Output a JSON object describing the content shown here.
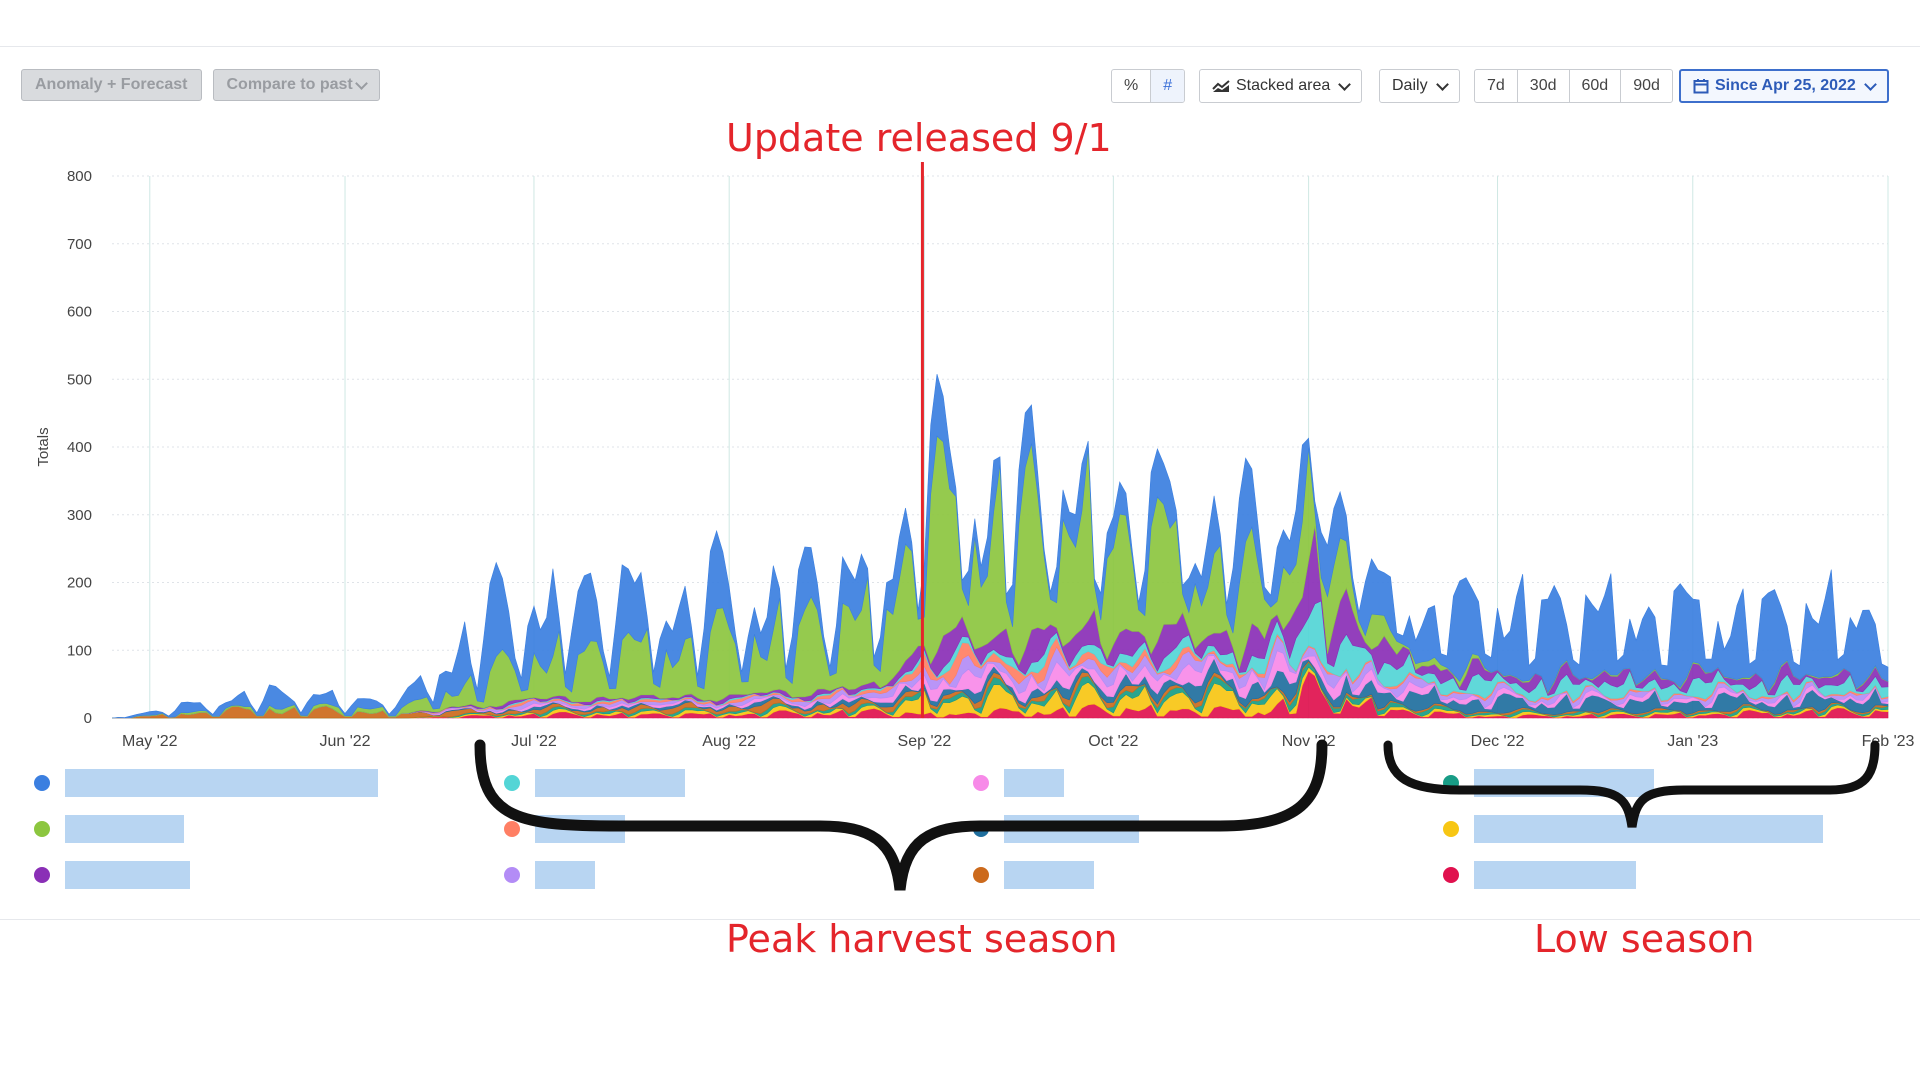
{
  "toolbar": {
    "anomaly_label": "Anomaly + Forecast",
    "compare_label": "Compare to past",
    "percent_label": "%",
    "number_label": "#",
    "chart_type_label": "Stacked area",
    "interval_label": "Daily",
    "range_7d": "7d",
    "range_30d": "30d",
    "range_60d": "60d",
    "range_90d": "90d",
    "date_range_label": "Since Apr 25, 2022"
  },
  "annotations": {
    "update": "Update released 9/1",
    "peak": "Peak harvest season",
    "low": "Low season"
  },
  "legend": [
    {
      "color": "#3b7fe0",
      "value_fraction": 1.0
    },
    {
      "color": "#8cc63f",
      "value_fraction": 0.38
    },
    {
      "color": "#8a2fb6",
      "value_fraction": 0.4
    },
    {
      "color": "#53d5d6",
      "value_fraction": 1.0
    },
    {
      "color": "#ff7f64",
      "value_fraction": 0.6
    },
    {
      "color": "#b38cf6",
      "value_fraction": 0.4
    },
    {
      "color": "#f78ae8",
      "value_fraction": 0.4
    },
    {
      "color": "#1f6f9e",
      "value_fraction": 0.9
    },
    {
      "color": "#cc6a1c",
      "value_fraction": 0.6
    },
    {
      "color": "#189c86",
      "value_fraction": 0.5
    },
    {
      "color": "#f7c614",
      "value_fraction": 0.97
    },
    {
      "color": "#e0114e",
      "value_fraction": 0.45
    }
  ],
  "chart_data": {
    "type": "area",
    "title": "",
    "xlabel": "",
    "ylabel": "Totals",
    "ylim": [
      0,
      800
    ],
    "yticks": [
      0,
      100,
      200,
      300,
      400,
      500,
      600,
      700,
      800
    ],
    "x_range": [
      "2022-04-25",
      "2023-02-01"
    ],
    "xticks": [
      {
        "date": "2022-05-01",
        "label": "May '22"
      },
      {
        "date": "2022-06-01",
        "label": "Jun '22"
      },
      {
        "date": "2022-07-01",
        "label": "Jul '22"
      },
      {
        "date": "2022-08-01",
        "label": "Aug '22"
      },
      {
        "date": "2022-09-01",
        "label": "Sep '22"
      },
      {
        "date": "2022-10-01",
        "label": "Oct '22"
      },
      {
        "date": "2022-11-01",
        "label": "Nov '22"
      },
      {
        "date": "2022-12-01",
        "label": "Dec '22"
      },
      {
        "date": "2023-01-01",
        "label": "Jan '23"
      },
      {
        "date": "2023-02-01",
        "label": "Feb '23"
      }
    ],
    "grid": true,
    "stacked": true,
    "series": [
      {
        "color": "#e0114e",
        "values": [
          [
            "2022-04-25",
            0
          ],
          [
            "2022-06-10",
            0
          ],
          [
            "2022-07-01",
            8
          ],
          [
            "2022-08-01",
            8
          ],
          [
            "2022-08-25",
            14
          ],
          [
            "2022-09-01",
            8
          ],
          [
            "2022-10-01",
            20
          ],
          [
            "2022-10-25",
            15
          ],
          [
            "2022-11-01",
            60
          ],
          [
            "2022-11-15",
            15
          ],
          [
            "2022-12-01",
            4
          ],
          [
            "2023-01-01",
            8
          ],
          [
            "2023-02-01",
            16
          ]
        ]
      },
      {
        "color": "#f7c614",
        "values": [
          [
            "2022-04-25",
            0
          ],
          [
            "2022-06-10",
            0
          ],
          [
            "2022-07-01",
            4
          ],
          [
            "2022-08-01",
            6
          ],
          [
            "2022-08-25",
            6
          ],
          [
            "2022-09-01",
            35
          ],
          [
            "2022-10-01",
            30
          ],
          [
            "2022-10-25",
            35
          ],
          [
            "2022-11-01",
            5
          ],
          [
            "2022-11-15",
            5
          ],
          [
            "2022-12-01",
            4
          ],
          [
            "2023-01-01",
            4
          ],
          [
            "2023-02-01",
            4
          ]
        ]
      },
      {
        "color": "#189c86",
        "values": [
          [
            "2022-04-25",
            0
          ],
          [
            "2022-06-10",
            0
          ],
          [
            "2022-07-01",
            4
          ],
          [
            "2022-08-01",
            5
          ],
          [
            "2022-08-25",
            5
          ],
          [
            "2022-09-01",
            10
          ],
          [
            "2022-10-01",
            12
          ],
          [
            "2022-10-25",
            12
          ],
          [
            "2022-11-01",
            10
          ],
          [
            "2022-11-15",
            8
          ],
          [
            "2022-12-01",
            4
          ],
          [
            "2023-01-01",
            4
          ],
          [
            "2023-02-01",
            4
          ]
        ]
      },
      {
        "color": "#cc6a1c",
        "values": [
          [
            "2022-04-25",
            0
          ],
          [
            "2022-05-20",
            20
          ],
          [
            "2022-06-10",
            10
          ],
          [
            "2022-07-01",
            6
          ],
          [
            "2022-08-01",
            10
          ],
          [
            "2022-08-25",
            10
          ],
          [
            "2022-09-01",
            8
          ],
          [
            "2022-10-01",
            10
          ],
          [
            "2022-10-25",
            5
          ],
          [
            "2022-11-01",
            4
          ],
          [
            "2022-11-15",
            3
          ],
          [
            "2022-12-01",
            3
          ],
          [
            "2023-01-01",
            3
          ],
          [
            "2023-02-01",
            3
          ]
        ]
      },
      {
        "color": "#1f6f9e",
        "values": [
          [
            "2022-04-25",
            0
          ],
          [
            "2022-06-10",
            0
          ],
          [
            "2022-07-01",
            4
          ],
          [
            "2022-08-01",
            5
          ],
          [
            "2022-08-25",
            8
          ],
          [
            "2022-09-01",
            12
          ],
          [
            "2022-10-01",
            15
          ],
          [
            "2022-10-25",
            30
          ],
          [
            "2022-11-01",
            20
          ],
          [
            "2022-11-15",
            30
          ],
          [
            "2022-12-01",
            25
          ],
          [
            "2023-01-01",
            25
          ],
          [
            "2023-02-01",
            22
          ]
        ]
      },
      {
        "color": "#f78ae8",
        "values": [
          [
            "2022-04-25",
            0
          ],
          [
            "2022-06-10",
            0
          ],
          [
            "2022-07-01",
            4
          ],
          [
            "2022-08-01",
            4
          ],
          [
            "2022-08-25",
            8
          ],
          [
            "2022-09-01",
            25
          ],
          [
            "2022-10-01",
            25
          ],
          [
            "2022-10-25",
            25
          ],
          [
            "2022-11-01",
            25
          ],
          [
            "2022-11-15",
            15
          ],
          [
            "2022-12-01",
            8
          ],
          [
            "2023-01-01",
            8
          ],
          [
            "2023-02-01",
            6
          ]
        ]
      },
      {
        "color": "#b38cf6",
        "values": [
          [
            "2022-04-25",
            0
          ],
          [
            "2022-06-10",
            0
          ],
          [
            "2022-07-01",
            6
          ],
          [
            "2022-08-01",
            5
          ],
          [
            "2022-08-25",
            10
          ],
          [
            "2022-09-01",
            20
          ],
          [
            "2022-10-01",
            20
          ],
          [
            "2022-10-25",
            20
          ],
          [
            "2022-11-01",
            20
          ],
          [
            "2022-11-15",
            15
          ],
          [
            "2022-12-01",
            10
          ],
          [
            "2023-01-01",
            8
          ],
          [
            "2023-02-01",
            8
          ]
        ]
      },
      {
        "color": "#ff7f64",
        "values": [
          [
            "2022-04-25",
            0
          ],
          [
            "2022-06-10",
            0
          ],
          [
            "2022-07-01",
            4
          ],
          [
            "2022-08-01",
            4
          ],
          [
            "2022-08-25",
            6
          ],
          [
            "2022-09-01",
            25
          ],
          [
            "2022-10-01",
            15
          ],
          [
            "2022-10-25",
            5
          ],
          [
            "2022-11-01",
            4
          ],
          [
            "2022-11-15",
            4
          ],
          [
            "2022-12-01",
            3
          ],
          [
            "2023-01-01",
            3
          ],
          [
            "2023-02-01",
            3
          ]
        ]
      },
      {
        "color": "#53d5d6",
        "values": [
          [
            "2022-04-25",
            0
          ],
          [
            "2022-06-10",
            0
          ],
          [
            "2022-07-01",
            2
          ],
          [
            "2022-08-01",
            2
          ],
          [
            "2022-08-25",
            3
          ],
          [
            "2022-09-01",
            10
          ],
          [
            "2022-10-01",
            20
          ],
          [
            "2022-10-25",
            20
          ],
          [
            "2022-11-01",
            90
          ],
          [
            "2022-11-15",
            30
          ],
          [
            "2022-12-01",
            25
          ],
          [
            "2023-01-01",
            25
          ],
          [
            "2023-02-01",
            20
          ]
        ]
      },
      {
        "color": "#8a2fb6",
        "values": [
          [
            "2022-04-25",
            0
          ],
          [
            "2022-06-10",
            0
          ],
          [
            "2022-07-01",
            6
          ],
          [
            "2022-08-01",
            6
          ],
          [
            "2022-08-25",
            10
          ],
          [
            "2022-09-01",
            40
          ],
          [
            "2022-10-01",
            50
          ],
          [
            "2022-10-25",
            40
          ],
          [
            "2022-11-01",
            110
          ],
          [
            "2022-11-15",
            30
          ],
          [
            "2022-12-01",
            20
          ],
          [
            "2023-01-01",
            20
          ],
          [
            "2023-02-01",
            18
          ]
        ]
      },
      {
        "color": "#8cc63f",
        "values": [
          [
            "2022-04-25",
            0
          ],
          [
            "2022-06-10",
            10
          ],
          [
            "2022-07-01",
            90
          ],
          [
            "2022-08-01",
            120
          ],
          [
            "2022-08-25",
            160
          ],
          [
            "2022-09-01",
            280
          ],
          [
            "2022-10-01",
            230
          ],
          [
            "2022-10-25",
            120
          ],
          [
            "2022-11-01",
            150
          ],
          [
            "2022-11-15",
            20
          ],
          [
            "2022-12-01",
            2
          ],
          [
            "2023-01-01",
            2
          ],
          [
            "2023-02-01",
            2
          ]
        ]
      },
      {
        "color": "#3b7fe0",
        "values": [
          [
            "2022-04-25",
            0
          ],
          [
            "2022-05-20",
            30
          ],
          [
            "2022-06-10",
            15
          ],
          [
            "2022-06-20",
            110
          ],
          [
            "2022-07-01",
            130
          ],
          [
            "2022-08-01",
            100
          ],
          [
            "2022-08-25",
            80
          ],
          [
            "2022-09-01",
            90
          ],
          [
            "2022-10-01",
            60
          ],
          [
            "2022-10-25",
            120
          ],
          [
            "2022-11-01",
            100
          ],
          [
            "2022-11-15",
            80
          ],
          [
            "2022-12-01",
            150
          ],
          [
            "2023-01-01",
            130
          ],
          [
            "2023-02-01",
            140
          ]
        ]
      }
    ],
    "annotation_date": "2022-09-01"
  }
}
